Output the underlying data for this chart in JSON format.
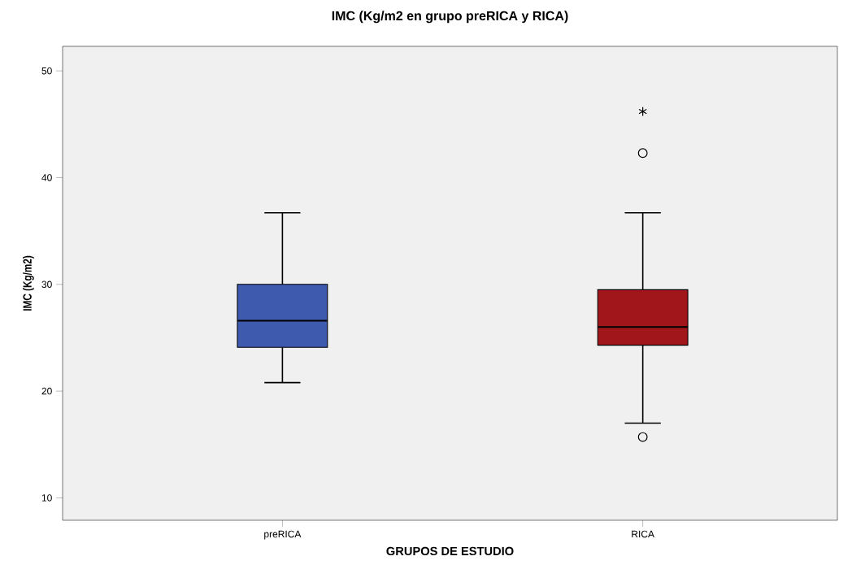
{
  "chart_data": {
    "type": "box",
    "title": "IMC (Kg/m2 en grupo preRICA y RICA)",
    "xlabel": "GRUPOS DE ESTUDIO",
    "ylabel": "IMC (Kg/m2)",
    "categories": [
      "preRICA",
      "RICA"
    ],
    "colors": [
      "#3d5aae",
      "#a0161b"
    ],
    "boxes": [
      {
        "low": 20.8,
        "q1": 24.1,
        "median": 26.6,
        "q3": 30.0,
        "high": 36.7
      },
      {
        "low": 17.0,
        "q1": 24.3,
        "median": 26.0,
        "q3": 29.5,
        "high": 36.7,
        "outliers": [
          15.7,
          42.3,
          46.2
        ]
      }
    ],
    "ylim": [
      7.9,
      52.3
    ],
    "yticks": [
      10,
      20,
      30,
      40,
      50
    ],
    "grid": false
  }
}
